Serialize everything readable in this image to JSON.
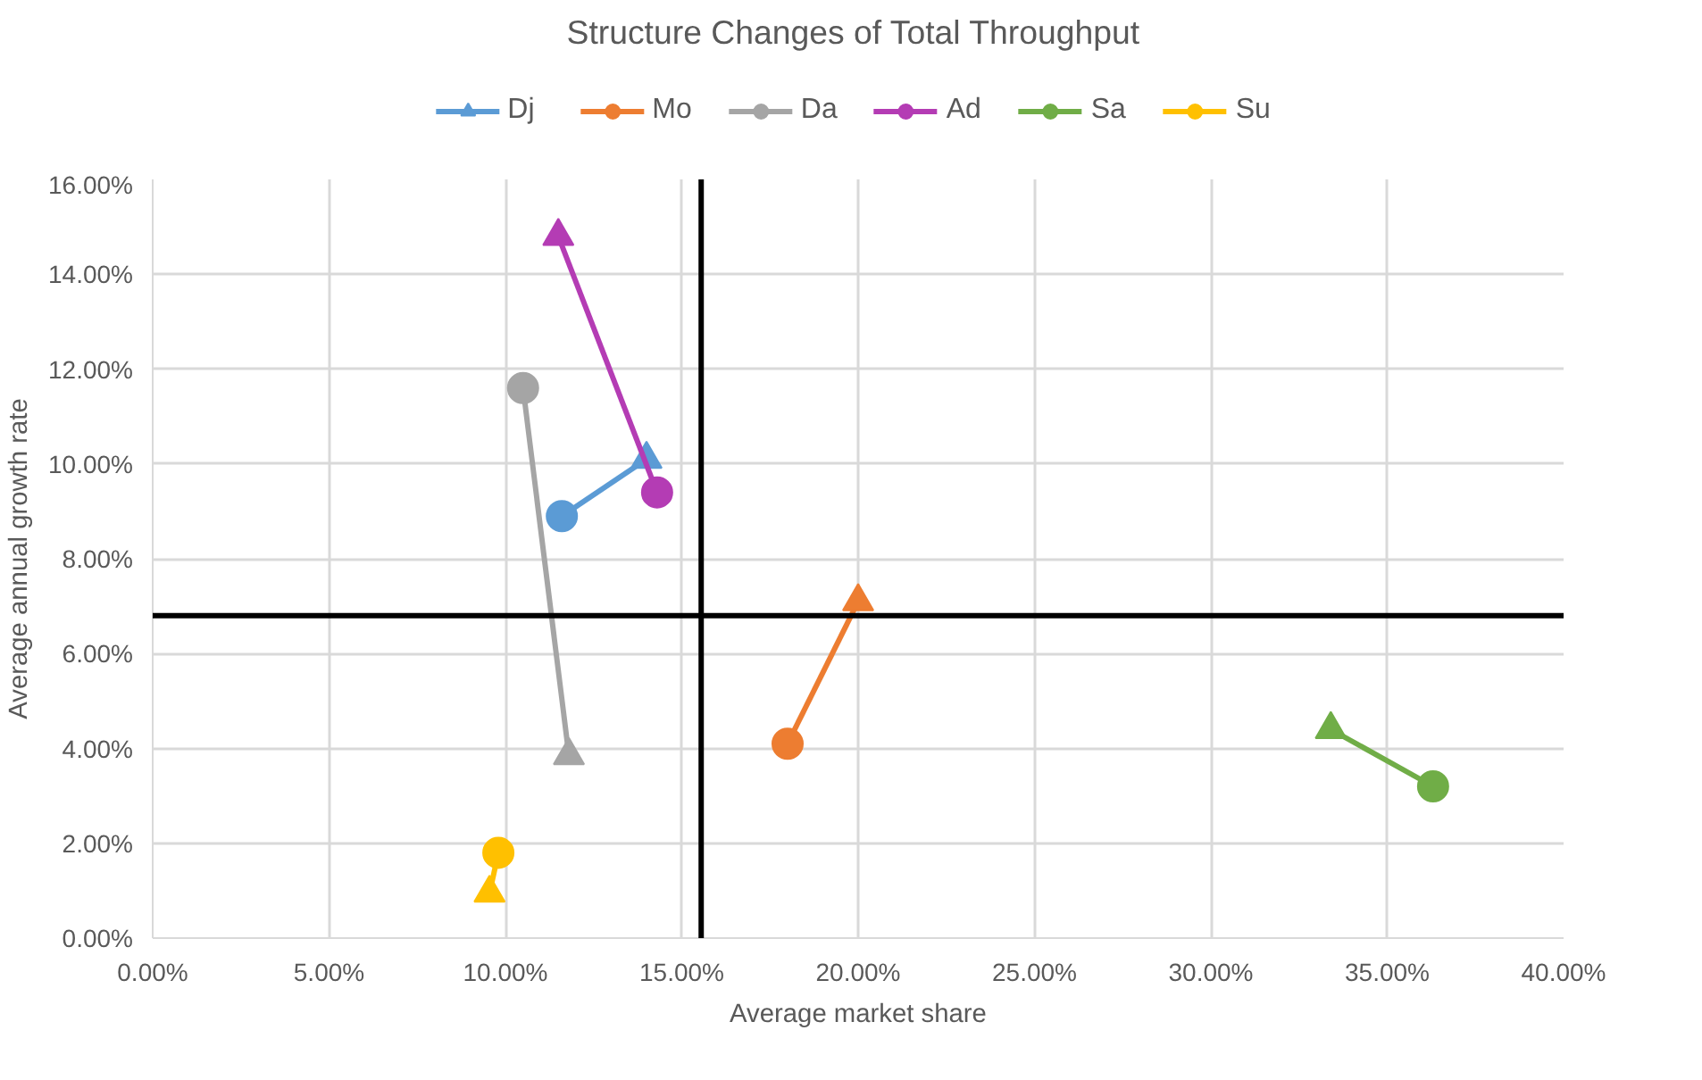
{
  "chart_data": {
    "type": "line",
    "title": "Structure Changes of Total Throughput",
    "xlabel": "Average market share",
    "ylabel": "Average annual growth rate",
    "xlim": [
      0,
      40
    ],
    "ylim": [
      0,
      16
    ],
    "xticks": [
      {
        "value": 0,
        "label": "0.00%"
      },
      {
        "value": 5,
        "label": "5.00%"
      },
      {
        "value": 10,
        "label": "10.00%"
      },
      {
        "value": 15,
        "label": "15.00%"
      },
      {
        "value": 20,
        "label": "20.00%"
      },
      {
        "value": 25,
        "label": "25.00%"
      },
      {
        "value": 30,
        "label": "30.00%"
      },
      {
        "value": 35,
        "label": "35.00%"
      },
      {
        "value": 40,
        "label": "40.00%"
      }
    ],
    "yticks": [
      {
        "value": 0,
        "label": "0.00%"
      },
      {
        "value": 2,
        "label": "2.00%"
      },
      {
        "value": 4,
        "label": "4.00%"
      },
      {
        "value": 6,
        "label": "6.00%"
      },
      {
        "value": 8,
        "label": "8.00%"
      },
      {
        "value": 10,
        "label": "10.00%"
      },
      {
        "value": 12,
        "label": "12.00%"
      },
      {
        "value": 14,
        "label": "14.00%"
      },
      {
        "value": 16,
        "label": "16.00%"
      }
    ],
    "grid": true,
    "legend": "top",
    "series": [
      {
        "name": "Dj",
        "color": "#5b9bd5",
        "x": [
          11.6,
          14.0
        ],
        "values": [
          8.9,
          10.1
        ],
        "marker": "none"
      },
      {
        "type": "scatter",
        "color": "#5b9bd5",
        "x": [
          14.0
        ],
        "values": [
          10.1
        ],
        "marker": "triangle"
      },
      {
        "type": "scatter",
        "color": "#5b9bd5",
        "x": [
          11.6
        ],
        "values": [
          8.9
        ],
        "marker": "circle"
      },
      {
        "name": "Mo",
        "color": "#ed7d31",
        "x": [
          18.0,
          20.0
        ],
        "values": [
          4.1,
          7.1
        ],
        "marker": "none"
      },
      {
        "type": "scatter",
        "color": "#ed7d31",
        "x": [
          18.0
        ],
        "values": [
          4.1
        ],
        "marker": "circle"
      },
      {
        "type": "scatter",
        "color": "#ed7d31",
        "x": [
          20.0
        ],
        "values": [
          7.1
        ],
        "marker": "triangle"
      },
      {
        "name": "Da",
        "color": "#a5a5a5",
        "x": [
          10.5,
          11.8
        ],
        "values": [
          11.6,
          3.85
        ],
        "marker": "none"
      },
      {
        "type": "scatter",
        "color": "#a5a5a5",
        "x": [
          10.5
        ],
        "values": [
          11.6
        ],
        "marker": "circle"
      },
      {
        "type": "scatter",
        "color": "#a5a5a5",
        "x": [
          11.8
        ],
        "values": [
          3.85
        ],
        "marker": "triangle"
      },
      {
        "name": "Ad",
        "color": "#b43cb4",
        "x": [
          11.5,
          14.3
        ],
        "values": [
          14.8,
          9.4
        ],
        "marker": "none"
      },
      {
        "type": "scatter",
        "color": "#b43cb4",
        "x": [
          14.3
        ],
        "values": [
          9.4
        ],
        "marker": "circle"
      },
      {
        "type": "scatter",
        "color": "#b43cb4",
        "x": [
          11.5
        ],
        "values": [
          14.8
        ],
        "marker": "triangle"
      },
      {
        "name": "Sa",
        "color": "#70ad47",
        "x": [
          33.4,
          36.3
        ],
        "values": [
          4.4,
          3.2
        ],
        "marker": "none"
      },
      {
        "type": "scatter",
        "color": "#70ad47",
        "x": [
          36.3
        ],
        "values": [
          3.2
        ],
        "marker": "circle"
      },
      {
        "type": "scatter",
        "color": "#70ad47",
        "x": [
          33.4
        ],
        "values": [
          4.4
        ],
        "marker": "triangle"
      },
      {
        "name": "Su",
        "color": "#ffc000",
        "x": [
          9.8,
          9.55
        ],
        "values": [
          1.8,
          0.95
        ],
        "marker": "none"
      },
      {
        "type": "scatter",
        "color": "#ffc000",
        "x": [
          9.8
        ],
        "values": [
          1.8
        ],
        "marker": "circle"
      },
      {
        "type": "scatter",
        "color": "#ffc000",
        "x": [
          9.55
        ],
        "values": [
          0.95
        ],
        "marker": "triangle"
      }
    ],
    "ref_lines": [
      {
        "axis": "x",
        "value": 15.55,
        "color": "#000000"
      },
      {
        "axis": "y",
        "value": 6.8,
        "color": "#000000"
      }
    ]
  }
}
